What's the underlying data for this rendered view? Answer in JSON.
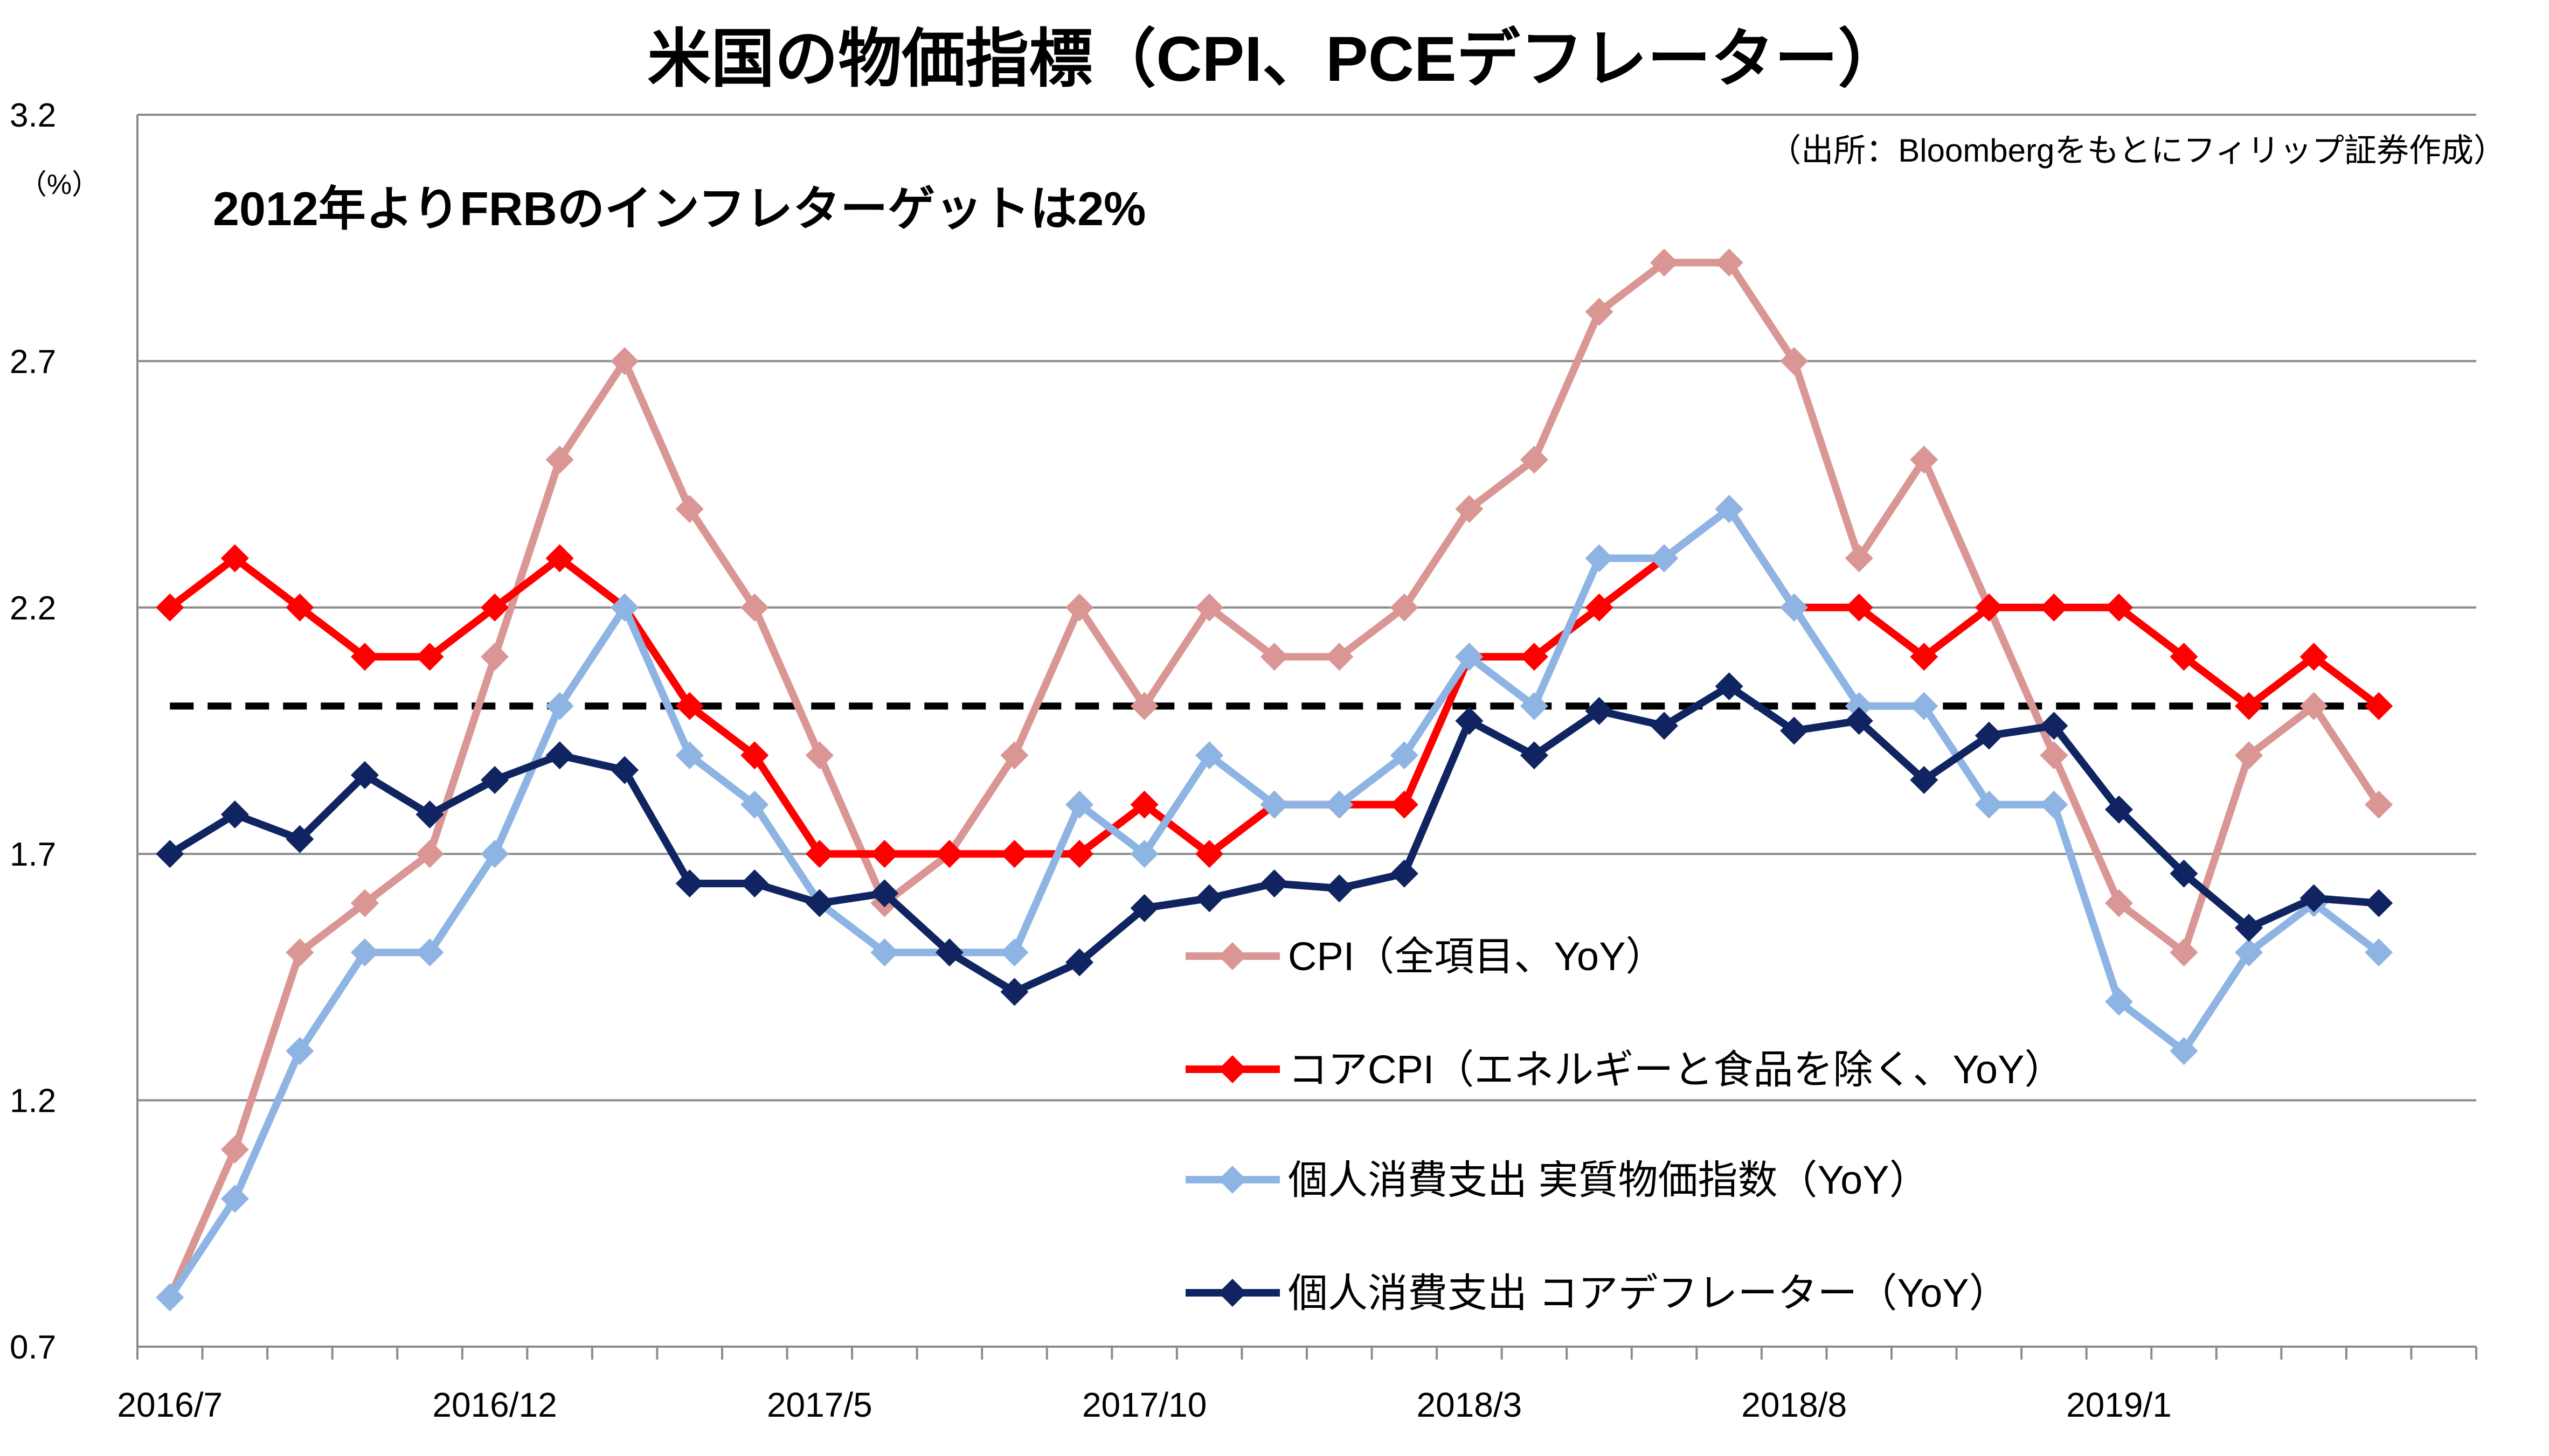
{
  "chart_data": {
    "type": "line",
    "title": "米国の物価指標（CPI、PCEデフレーター）",
    "source_note": "（出所：Bloombergをもとにフィリップ証券作成）",
    "annotation": "2012年よりFRBのインフレターゲットは2%",
    "ylabel": "（%）",
    "ylim": [
      0.7,
      3.2
    ],
    "yticks": [
      "0.7",
      "1.2",
      "1.7",
      "2.2",
      "2.7",
      "3.2"
    ],
    "xticks": [
      "2016/7",
      "2016/12",
      "2017/5",
      "2017/10",
      "2018/3",
      "2018/8",
      "2019/1"
    ],
    "x": [
      "2016/7",
      "2016/8",
      "2016/9",
      "2016/10",
      "2016/11",
      "2016/12",
      "2017/1",
      "2017/2",
      "2017/3",
      "2017/4",
      "2017/5",
      "2017/6",
      "2017/7",
      "2017/8",
      "2017/9",
      "2017/10",
      "2017/11",
      "2017/12",
      "2018/1",
      "2018/2",
      "2018/3",
      "2018/4",
      "2018/5",
      "2018/6",
      "2018/7",
      "2018/8",
      "2018/9",
      "2018/10",
      "2018/11",
      "2018/12",
      "2019/1",
      "2019/2",
      "2019/3",
      "2019/4",
      "2019/5",
      "2019/6"
    ],
    "target_line": 2.0,
    "grid": true,
    "series": [
      {
        "name": "CPI（全項目、YoY）",
        "color": "#d99694",
        "values": [
          0.8,
          1.1,
          1.5,
          1.6,
          1.7,
          2.1,
          2.5,
          2.7,
          2.4,
          2.2,
          1.9,
          1.6,
          1.7,
          1.9,
          2.2,
          2.0,
          2.2,
          2.1,
          2.1,
          2.2,
          2.4,
          2.5,
          2.8,
          2.9,
          2.9,
          2.7,
          2.3,
          2.5,
          2.2,
          1.9,
          1.6,
          1.5,
          1.9,
          2.0,
          1.8,
          null
        ]
      },
      {
        "name": "コアCPI（エネルギーと食品を除く、YoY）",
        "color": "#ff0000",
        "values": [
          2.2,
          2.3,
          2.2,
          2.1,
          2.1,
          2.2,
          2.3,
          2.2,
          2.0,
          1.9,
          1.7,
          1.7,
          1.7,
          1.7,
          1.7,
          1.8,
          1.7,
          1.8,
          1.8,
          1.8,
          2.1,
          2.1,
          2.2,
          2.3,
          2.4,
          2.2,
          2.2,
          2.1,
          2.2,
          2.2,
          2.2,
          2.1,
          2.0,
          2.1,
          2.0,
          null
        ]
      },
      {
        "name": "個人消費支出 実質物価指数（YoY）",
        "color": "#8eb4e3",
        "values": [
          0.8,
          1.0,
          1.3,
          1.5,
          1.5,
          1.7,
          2.0,
          2.2,
          1.9,
          1.8,
          1.6,
          1.5,
          1.5,
          1.5,
          1.8,
          1.7,
          1.9,
          1.8,
          1.8,
          1.9,
          2.1,
          2.0,
          2.3,
          2.3,
          2.4,
          2.2,
          2.0,
          2.0,
          1.8,
          1.8,
          1.4,
          1.3,
          1.5,
          1.6,
          1.5,
          null
        ]
      },
      {
        "name": "個人消費支出 コアデフレーター（YoY）",
        "color": "#0f2460",
        "values": [
          1.7,
          1.78,
          1.73,
          1.86,
          1.78,
          1.85,
          1.9,
          1.87,
          1.64,
          1.64,
          1.6,
          1.62,
          1.5,
          1.42,
          1.48,
          1.59,
          1.61,
          1.64,
          1.63,
          1.66,
          1.97,
          1.9,
          1.99,
          1.96,
          2.04,
          1.95,
          1.97,
          1.85,
          1.94,
          1.96,
          1.79,
          1.66,
          1.55,
          1.61,
          1.6,
          null
        ]
      }
    ]
  }
}
